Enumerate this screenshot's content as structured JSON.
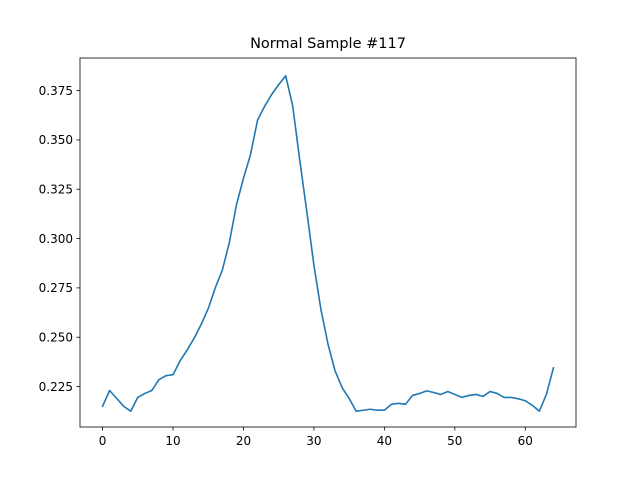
{
  "chart_data": {
    "type": "line",
    "title": "Normal Sample #117",
    "xlabel": "",
    "ylabel": "",
    "xlim": [
      -3.2,
      67.2
    ],
    "ylim": [
      0.2045,
      0.3915
    ],
    "grid": false,
    "x_ticks": [
      0,
      10,
      20,
      30,
      40,
      50,
      60
    ],
    "x_tick_labels": [
      "0",
      "10",
      "20",
      "30",
      "40",
      "50",
      "60"
    ],
    "y_ticks": [
      0.225,
      0.25,
      0.275,
      0.3,
      0.325,
      0.35,
      0.375
    ],
    "y_tick_labels": [
      "0.225",
      "0.250",
      "0.275",
      "0.300",
      "0.325",
      "0.350",
      "0.375"
    ],
    "series": [
      {
        "color": "#1f77b4",
        "x": [
          0,
          1,
          2,
          3,
          4,
          5,
          6,
          7,
          8,
          9,
          10,
          11,
          12,
          13,
          14,
          15,
          16,
          17,
          18,
          19,
          20,
          21,
          22,
          23,
          24,
          25,
          26,
          27,
          28,
          29,
          30,
          31,
          32,
          33,
          34,
          35,
          36,
          37,
          38,
          39,
          40,
          41,
          42,
          43,
          44,
          45,
          46,
          47,
          48,
          49,
          50,
          51,
          52,
          53,
          54,
          55,
          56,
          57,
          58,
          59,
          60,
          61,
          62,
          63,
          64
        ],
        "y": [
          0.215,
          0.223,
          0.219,
          0.215,
          0.2125,
          0.2195,
          0.2215,
          0.223,
          0.2285,
          0.2305,
          0.231,
          0.238,
          0.2435,
          0.2495,
          0.2565,
          0.2645,
          0.275,
          0.284,
          0.298,
          0.317,
          0.3305,
          0.3425,
          0.36,
          0.367,
          0.373,
          0.378,
          0.3825,
          0.367,
          0.3395,
          0.3135,
          0.2865,
          0.264,
          0.2465,
          0.233,
          0.2245,
          0.219,
          0.2125,
          0.213,
          0.2135,
          0.213,
          0.213,
          0.216,
          0.2165,
          0.216,
          0.2205,
          0.2215,
          0.2228,
          0.222,
          0.221,
          0.2225,
          0.221,
          0.2195,
          0.2205,
          0.221,
          0.22,
          0.2225,
          0.2215,
          0.2195,
          0.2195,
          0.2188,
          0.2178,
          0.2155,
          0.2125,
          0.221,
          0.2345
        ]
      }
    ]
  }
}
